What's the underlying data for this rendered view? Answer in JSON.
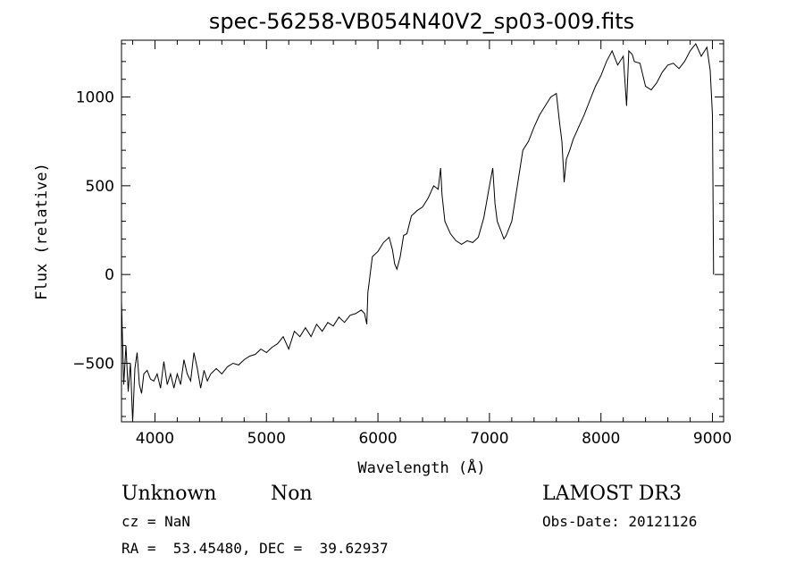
{
  "chart_data": {
    "type": "line",
    "title": "spec-56258-VB054N40V2_sp03-009.fits",
    "xlabel": "Wavelength (Å)",
    "ylabel": "Flux (relative)",
    "xlim": [
      3700,
      9100
    ],
    "ylim": [
      -830,
      1320
    ],
    "xticks": [
      4000,
      5000,
      6000,
      7000,
      8000,
      9000
    ],
    "yticks": [
      -500,
      0,
      500,
      1000
    ],
    "grid": false,
    "legend": "none",
    "series": [
      {
        "color": "#000000",
        "x": [
          3700,
          3720,
          3740,
          3760,
          3780,
          3800,
          3820,
          3840,
          3860,
          3880,
          3900,
          3930,
          3960,
          3990,
          4020,
          4050,
          4080,
          4110,
          4140,
          4170,
          4200,
          4230,
          4260,
          4290,
          4320,
          4350,
          4380,
          4410,
          4440,
          4470,
          4500,
          4550,
          4600,
          4650,
          4700,
          4750,
          4800,
          4850,
          4900,
          4950,
          5000,
          5050,
          5100,
          5150,
          5200,
          5250,
          5300,
          5350,
          5400,
          5450,
          5500,
          5550,
          5600,
          5650,
          5700,
          5750,
          5800,
          5850,
          5880,
          5900,
          5910,
          5920,
          5950,
          6000,
          6050,
          6100,
          6130,
          6150,
          6170,
          6200,
          6230,
          6260,
          6300,
          6350,
          6400,
          6450,
          6500,
          6540,
          6562,
          6575,
          6600,
          6650,
          6700,
          6750,
          6800,
          6850,
          6900,
          6950,
          7000,
          7030,
          7050,
          7070,
          7100,
          7130,
          7150,
          7200,
          7250,
          7300,
          7350,
          7400,
          7450,
          7500,
          7550,
          7600,
          7630,
          7650,
          7670,
          7690,
          7720,
          7750,
          7800,
          7850,
          7900,
          7950,
          8000,
          8050,
          8100,
          8150,
          8200,
          8230,
          8250,
          8280,
          8300,
          8350,
          8400,
          8450,
          8500,
          8550,
          8600,
          8650,
          8700,
          8750,
          8800,
          8850,
          8900,
          8950,
          8980,
          9000,
          9010
        ],
        "y": [
          -150,
          -620,
          -400,
          -660,
          -500,
          -830,
          -530,
          -440,
          -620,
          -670,
          -560,
          -540,
          -590,
          -600,
          -560,
          -640,
          -490,
          -620,
          -560,
          -640,
          -560,
          -620,
          -480,
          -560,
          -600,
          -440,
          -530,
          -640,
          -540,
          -600,
          -560,
          -530,
          -560,
          -520,
          -500,
          -510,
          -480,
          -460,
          -450,
          -420,
          -440,
          -410,
          -390,
          -350,
          -420,
          -320,
          -350,
          -300,
          -350,
          -280,
          -320,
          -270,
          -290,
          -240,
          -270,
          -230,
          -220,
          -200,
          -220,
          -280,
          -100,
          -50,
          100,
          130,
          180,
          210,
          140,
          60,
          30,
          100,
          220,
          230,
          330,
          360,
          380,
          430,
          500,
          480,
          600,
          450,
          300,
          230,
          190,
          170,
          190,
          180,
          210,
          320,
          500,
          600,
          400,
          300,
          250,
          200,
          220,
          300,
          500,
          700,
          750,
          830,
          900,
          950,
          1000,
          1020,
          850,
          750,
          520,
          650,
          700,
          760,
          830,
          900,
          980,
          1060,
          1120,
          1200,
          1260,
          1180,
          1230,
          950,
          1260,
          1240,
          1200,
          1190,
          1060,
          1040,
          1080,
          1140,
          1180,
          1190,
          1160,
          1200,
          1260,
          1300,
          1230,
          1280,
          1150,
          900,
          0
        ]
      }
    ]
  },
  "info": {
    "object_class": "Unknown",
    "object_subclass": "Non",
    "survey": "LAMOST DR3",
    "cz": "cz = NaN",
    "obs_date": "Obs-Date: 20121126",
    "coords": "RA =  53.45480, DEC =  39.62937"
  }
}
